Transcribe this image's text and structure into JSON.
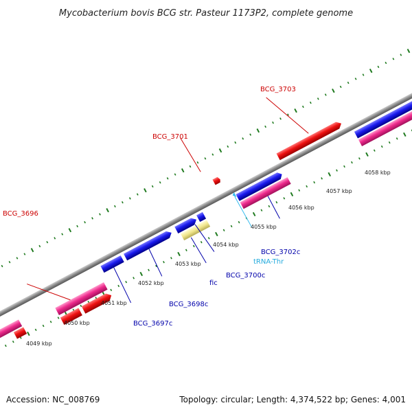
{
  "title": "Mycobacterium bovis BCG str. Pasteur 1173P2, complete genome",
  "footer": {
    "accession": "Accession: NC_008769",
    "summary": "Topology: circular; Length: 4,374,522 bp; Genes: 4,001"
  },
  "colors": {
    "backbone": "#8a8a8a",
    "tick_green": "#1f7a1f",
    "gene_red": "#ee1111",
    "gene_pink": "#ee2a8c",
    "gene_blue": "#1a1aee",
    "gene_khaki": "#f0e68c",
    "trna_cyan": "#33bbee",
    "label_red": "#cc0000",
    "label_blue": "#0000aa",
    "label_cyan": "#22aadd"
  },
  "scale_labels": [
    "4049 kbp",
    "4050 kbp",
    "4051 kbp",
    "4052 kbp",
    "4053 kbp",
    "4054 kbp",
    "4055 kbp",
    "4056 kbp",
    "4057 kbp",
    "4058 kbp"
  ],
  "gene_labels": {
    "BCG_3696": "BCG_3696",
    "BCG_3701": "BCG_3701",
    "BCG_3703": "BCG_3703",
    "BCG_3697c": "BCG_3697c",
    "BCG_3698c": "BCG_3698c",
    "fic": "fic",
    "BCG_3700c": "BCG_3700c",
    "tRNA_Thr": "tRNA-Thr",
    "BCG_3702c": "BCG_3702c"
  }
}
